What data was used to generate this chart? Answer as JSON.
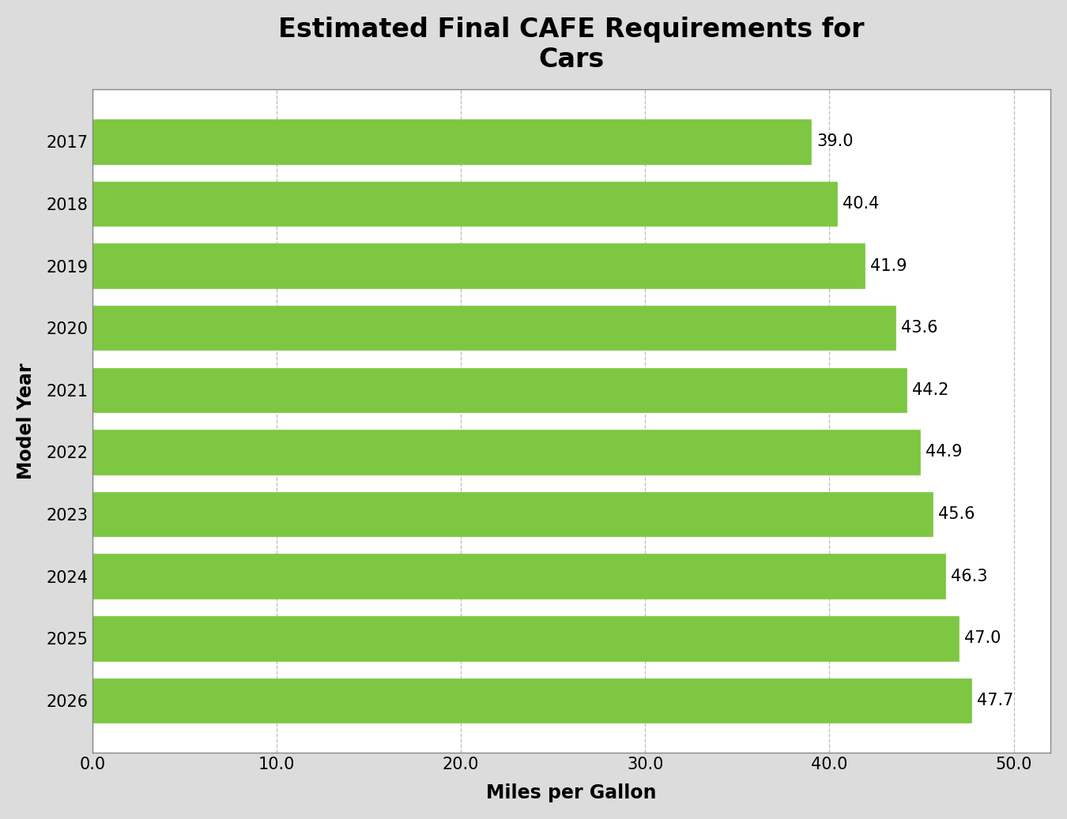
{
  "title": "Estimated Final CAFE Requirements for\nCars",
  "xlabel": "Miles per Gallon",
  "ylabel": "Model Year",
  "years": [
    "2017",
    "2018",
    "2019",
    "2020",
    "2021",
    "2022",
    "2023",
    "2024",
    "2025",
    "2026"
  ],
  "values": [
    39.0,
    40.4,
    41.9,
    43.6,
    44.2,
    44.9,
    45.6,
    46.3,
    47.0,
    47.7
  ],
  "bar_color": "#7DC742",
  "bar_edgecolor": "#7DC742",
  "xlim": [
    0,
    52
  ],
  "xticks": [
    0.0,
    10.0,
    20.0,
    30.0,
    40.0,
    50.0
  ],
  "xtick_labels": [
    "0.0",
    "10.0",
    "20.0",
    "30.0",
    "40.0",
    "50.0"
  ],
  "title_fontsize": 24,
  "axis_label_fontsize": 17,
  "tick_fontsize": 15,
  "value_label_fontsize": 15,
  "background_color": "#DCDCDC",
  "plot_background_color": "#FFFFFF",
  "grid_color": "#BBBBBB",
  "bar_height": 0.72
}
